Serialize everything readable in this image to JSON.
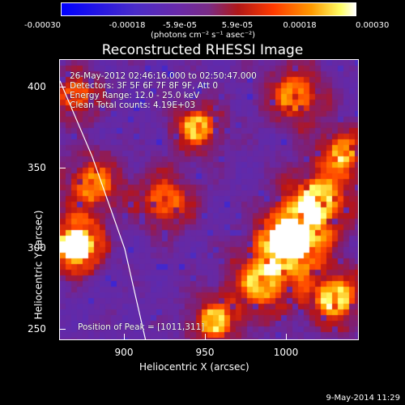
{
  "colorbar": {
    "ticks": [
      "-0.00030",
      "-0.00018",
      "-5.9e-05",
      "5.9e-05",
      "0.00018",
      "0.00030"
    ],
    "units": "(photons cm⁻² s⁻¹ asec⁻²)"
  },
  "annotations": {
    "time_range": "26-May-2012 02:46:16.000 to 02:50:47.000",
    "detectors": "Detectors: 3F 5F 6F 7F 8F 9F, Att 0",
    "energy": "Energy Range: 12.0 - 25.0 keV",
    "clean": "Clean     Total counts: 4.19E+03",
    "peak": "Position of Peak = [1011,311]"
  },
  "footer": {
    "date": "9-May-2014 11:29"
  },
  "chart_data": {
    "type": "heatmap",
    "title": "Reconstructed RHESSI Image",
    "xlabel": "Heliocentric X (arcsec)",
    "ylabel": "Heliocentric Y (arcsec)",
    "xlim": [
      860,
      1045
    ],
    "ylim": [
      243,
      417
    ],
    "x_ticks": [
      900,
      950,
      1000
    ],
    "y_ticks": [
      250,
      300,
      350,
      400
    ],
    "colorbar_range": [
      -0.0003,
      0.0003
    ],
    "peak_position": [
      1011,
      311
    ],
    "limb_curve": [
      [
        860,
        404
      ],
      [
        880,
        357
      ],
      [
        900,
        300
      ],
      [
        913,
        243
      ]
    ],
    "hot_regions": [
      {
        "x": 1003,
        "y": 306,
        "intensity": 1.0,
        "r": 12
      },
      {
        "x": 870,
        "y": 302,
        "intensity": 0.95,
        "r": 10
      },
      {
        "x": 1020,
        "y": 330,
        "intensity": 0.6,
        "r": 14
      },
      {
        "x": 985,
        "y": 280,
        "intensity": 0.55,
        "r": 14
      },
      {
        "x": 1030,
        "y": 270,
        "intensity": 0.6,
        "r": 12
      },
      {
        "x": 880,
        "y": 340,
        "intensity": 0.5,
        "r": 12
      },
      {
        "x": 945,
        "y": 375,
        "intensity": 0.55,
        "r": 10
      },
      {
        "x": 1005,
        "y": 395,
        "intensity": 0.5,
        "r": 12
      },
      {
        "x": 955,
        "y": 255,
        "intensity": 0.55,
        "r": 10
      },
      {
        "x": 925,
        "y": 330,
        "intensity": 0.45,
        "r": 12
      },
      {
        "x": 870,
        "y": 395,
        "intensity": 0.45,
        "r": 10
      },
      {
        "x": 1035,
        "y": 360,
        "intensity": 0.5,
        "r": 10
      }
    ]
  }
}
